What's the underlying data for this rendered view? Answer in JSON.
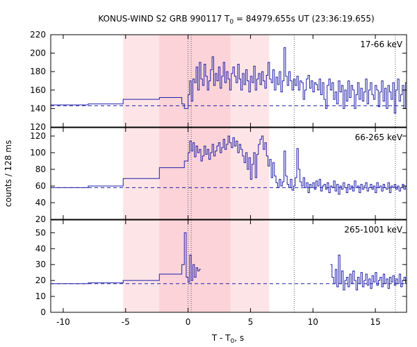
{
  "chart_data": {
    "type": "line",
    "title_main": "KONUS-WIND S2 GRB 990117 T",
    "title_sub": "0",
    "title_rest": " = 84979.655s UT (23:36:19.655)",
    "xlabel_main": "T - T",
    "xlabel_sub": "0",
    "xlabel_rest": ", s",
    "ylabel": "counts / 128 ms",
    "xlim": [
      -11,
      17.5
    ],
    "xticks": [
      -10,
      -5,
      0,
      5,
      10,
      15
    ],
    "shaded_regions": [
      {
        "x0": -5.2,
        "x1": 6.5,
        "color": "#fde4e6"
      },
      {
        "x0": -2.3,
        "x1": 3.4,
        "color": "#fbd3d8"
      }
    ],
    "dotted_lines": [
      0.0,
      0.25,
      8.5,
      16.6
    ],
    "line_color": "#1f1fa8",
    "panels": [
      {
        "label": "17-66 keV",
        "ylim": [
          120,
          220
        ],
        "yticks": [
          120,
          140,
          160,
          180,
          200,
          220
        ],
        "background": 143,
        "coarse_steps": [
          {
            "x0": -11,
            "x1": -8,
            "y": 144
          },
          {
            "x0": -8,
            "x1": -5.2,
            "y": 145
          },
          {
            "x0": -5.2,
            "x1": -2.3,
            "y": 150
          },
          {
            "x0": -2.3,
            "x1": -0.5,
            "y": 152
          },
          {
            "x0": -0.5,
            "x1": -0.3,
            "y": 145
          },
          {
            "x0": -0.3,
            "x1": 0.0,
            "y": 140
          }
        ],
        "fine_series": [
          {
            "x_start": 0.0,
            "dt": 0.128,
            "values": [
              155,
              170,
              148,
              172,
              168,
              185,
              160,
              190,
              172,
              165,
              188,
              175,
              160,
              170,
              182,
              196,
              165,
              178,
              170,
              185,
              162,
              175,
              190,
              168,
              180,
              172,
              160,
              178,
              185,
              175,
              168,
              188,
              172,
              160,
              178,
              166,
              182,
              170,
              158,
              175,
              168,
              186,
              160,
              172,
              178,
              166,
              180,
              170,
              162,
              176,
              190,
              172,
              168,
              182,
              160,
              174,
              166,
              180,
              158,
              170,
              206,
              175,
              165,
              180,
              170,
              160,
              172,
              165,
              175,
              160,
              170,
              168,
              150,
              160,
              172,
              176,
              162,
              170,
              158,
              168,
              166,
              160,
              172,
              155,
              168,
              150,
              140,
              165,
              172,
              160,
              168,
              150,
              158,
              145,
              170,
              158,
              165,
              140,
              160,
              148,
              170,
              152,
              165,
              160,
              140,
              155,
              168,
              150,
              162,
              148,
              158,
              172,
              145,
              160,
              168,
              155,
              150,
              165,
              160,
              142,
              158,
              170,
              148,
              162,
              140,
              165,
              158,
              150,
              168,
              135,
              160,
              172,
              148,
              155,
              165,
              140,
              168,
              150,
              160,
              145,
              165,
              175,
              148,
              160,
              152,
              168,
              142,
              160,
              170,
              150,
              158,
              140,
              162,
              148,
              155,
              168,
              160
            ]
          }
        ]
      },
      {
        "label": "66-265 keV",
        "ylim": [
          20,
          130
        ],
        "yticks": [
          20,
          40,
          60,
          80,
          100,
          120
        ],
        "background": 58,
        "coarse_steps": [
          {
            "x0": -11,
            "x1": -8,
            "y": 58
          },
          {
            "x0": -8,
            "x1": -5.2,
            "y": 60
          },
          {
            "x0": -5.2,
            "x1": -2.3,
            "y": 69
          },
          {
            "x0": -2.3,
            "x1": -0.3,
            "y": 82
          },
          {
            "x0": -0.3,
            "x1": 0.0,
            "y": 90
          }
        ],
        "fine_series": [
          {
            "x_start": 0.0,
            "dt": 0.128,
            "values": [
              100,
              114,
              102,
              112,
              95,
              108,
              100,
              104,
              90,
              96,
              108,
              98,
              104,
              92,
              100,
              110,
              96,
              102,
              108,
              112,
              100,
              106,
              116,
              104,
              110,
              120,
              112,
              106,
              118,
              108,
              114,
              100,
              110,
              104,
              96,
              88,
              100,
              80,
              94,
              68,
              86,
              100,
              70,
              98,
              110,
              116,
              120,
              104,
              112,
              96,
              84,
              92,
              70,
              88,
              72,
              64,
              58,
              68,
              60,
              65,
              102,
              72,
              62,
              58,
              68,
              55,
              60,
              70,
              105,
              80,
              65,
              60,
              70,
              58,
              64,
              52,
              62,
              58,
              64,
              56,
              66,
              60,
              68,
              54,
              60,
              62,
              56,
              64,
              52,
              60,
              58,
              66,
              54,
              62,
              50,
              60,
              56,
              64,
              58,
              52,
              62,
              56,
              60,
              54,
              66,
              58,
              60,
              52,
              62,
              56,
              60,
              64,
              54,
              58,
              62,
              56,
              60,
              52,
              64,
              58,
              60,
              54,
              62,
              58,
              56,
              64,
              52,
              60,
              58,
              62,
              56,
              60,
              54,
              58,
              62,
              56,
              60,
              52,
              64,
              58,
              60,
              56
            ]
          }
        ]
      },
      {
        "label": "265-1001 keV",
        "ylim": [
          0,
          58
        ],
        "yticks": [
          0,
          10,
          20,
          30,
          40,
          50
        ],
        "background": 18,
        "coarse_steps": [
          {
            "x0": -11,
            "x1": -8,
            "y": 18
          },
          {
            "x0": -8,
            "x1": -5.2,
            "y": 18.5
          },
          {
            "x0": -5.2,
            "x1": -2.3,
            "y": 20
          },
          {
            "x0": -2.3,
            "x1": -0.5,
            "y": 24
          },
          {
            "x0": -0.5,
            "x1": -0.3,
            "y": 30
          },
          {
            "x0": -0.3,
            "x1": -0.15,
            "y": 50
          },
          {
            "x0": -0.15,
            "x1": 0.0,
            "y": 22
          }
        ],
        "fine_series": [
          {
            "x_start": 0.0,
            "dt": 0.128,
            "values": [
              19,
              36,
              20,
              30,
              22,
              28,
              26,
              27
            ]
          },
          {
            "x_start": 11.4,
            "dt": 0.128,
            "values": [
              30,
              22,
              18,
              27,
              16,
              36,
              18,
              26,
              14,
              20,
              22,
              16,
              24,
              18,
              26,
              20,
              14,
              22,
              18,
              25,
              16,
              20,
              24,
              17,
              21,
              15,
              23,
              19,
              25,
              17,
              20,
              22,
              16,
              24,
              18,
              21,
              15,
              22,
              19,
              23,
              17,
              21,
              18,
              24,
              16,
              20,
              22,
              18,
              25,
              15,
              21,
              19,
              23,
              17,
              20,
              24
            ]
          }
        ]
      }
    ]
  }
}
